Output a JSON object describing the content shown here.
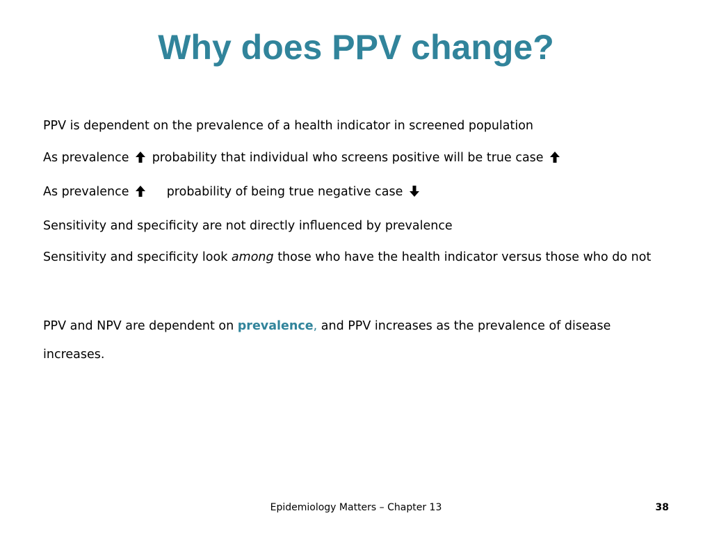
{
  "slide": {
    "title": "Why does PPV change?",
    "bullets": {
      "b1": "PPV is dependent on the prevalence of a health indicator in screened population",
      "b2_part1": "As prevalence",
      "b2_part2": "probability that individual who screens positive will be true case",
      "b3_part1": "As prevalence",
      "b3_part2": "probability of being true negative case",
      "b4": "Sensitivity and specificity are not directly influenced by prevalence",
      "b5_part1": "Sensitivity and specificity look",
      "b5_italic": "among",
      "b5_part2": "those who have the health indicator versus those who do not"
    },
    "conclusion": {
      "part1": "PPV and NPV are dependent on",
      "highlight": "prevalence",
      "comma": ",",
      "part2": "and PPV increases as the prevalence of disease increases."
    },
    "icons": {
      "up": "arrow-up-icon",
      "down": "arrow-down-icon"
    },
    "accent_color": "#31849b"
  },
  "footer": {
    "text": "Epidemiology Matters – Chapter 13",
    "page_number": "38"
  }
}
